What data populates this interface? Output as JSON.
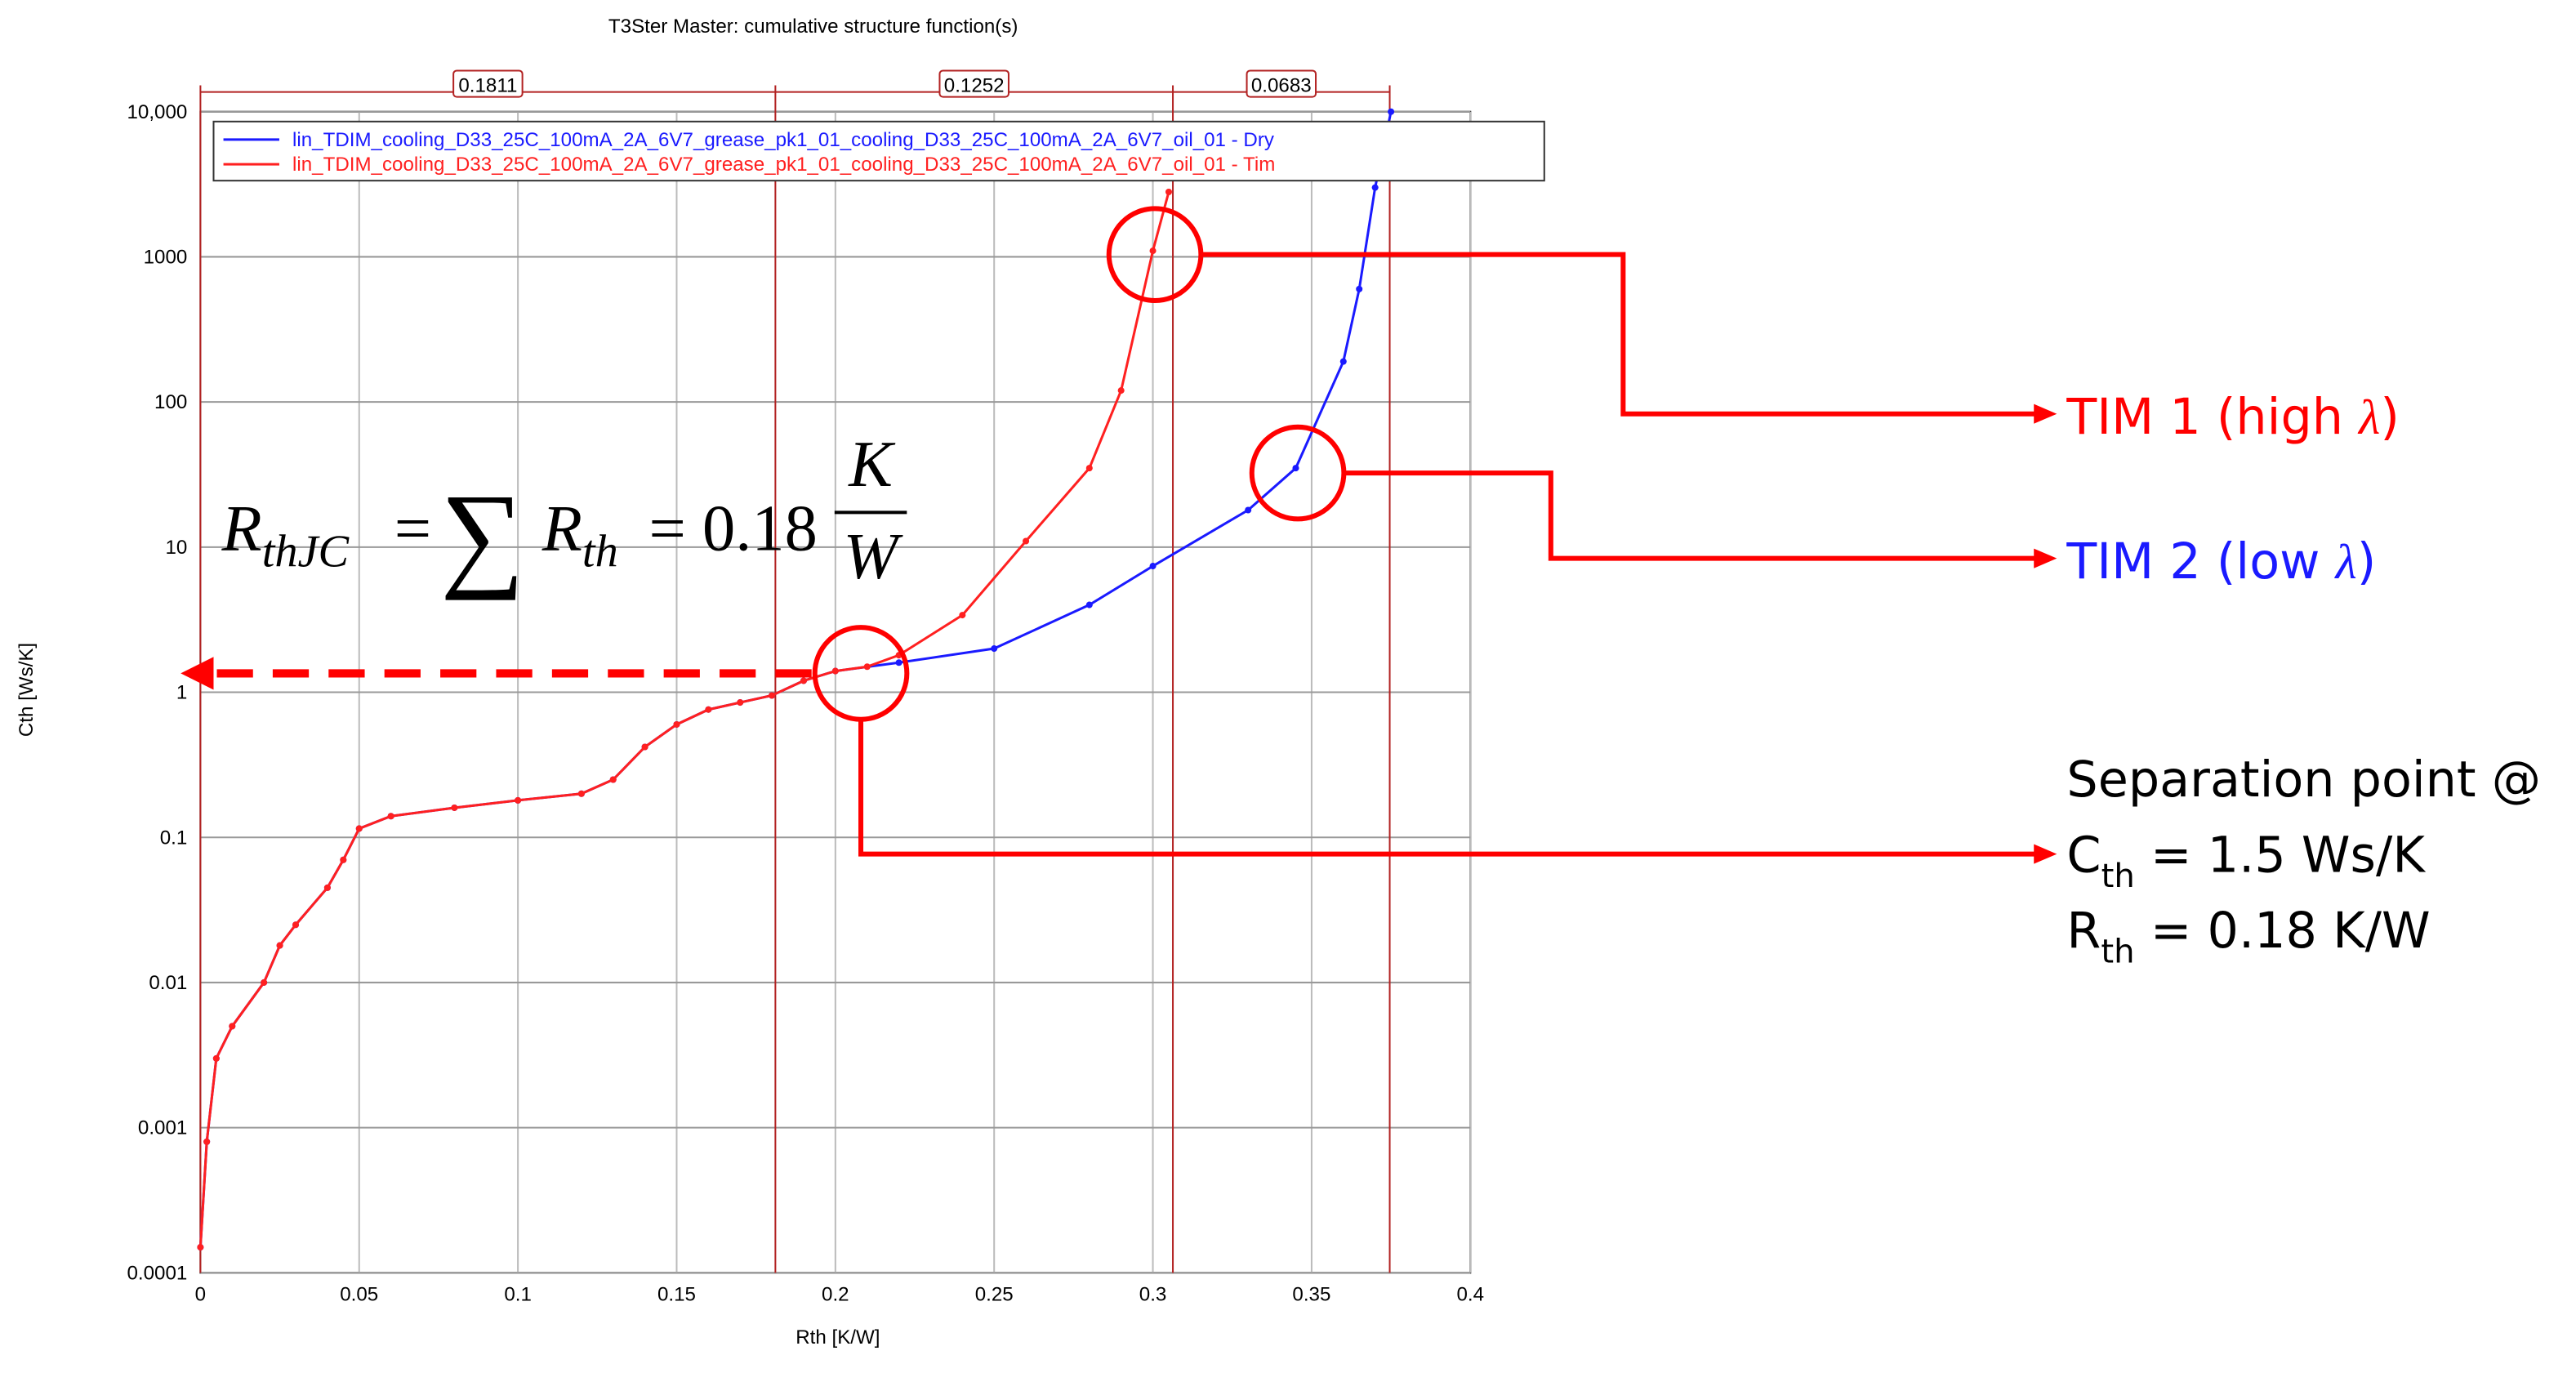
{
  "chart_data": {
    "type": "line",
    "title": "T3Ster Master: cumulative structure function(s)",
    "x_label": "Rth  [K/W]",
    "y_label": "Cth  [Ws/K]",
    "log_y": true,
    "grid": true,
    "legend": "top-left",
    "xlim": [
      0,
      0.4
    ],
    "xticks": [
      0,
      0.05,
      0.1,
      0.15,
      0.2,
      0.25,
      0.3,
      0.35,
      0.4
    ],
    "ylim": [
      0.0001,
      10000
    ],
    "yticks": [
      0.0001,
      0.001,
      0.01,
      0.1,
      1,
      10,
      100,
      1000,
      {
        "value": 10000,
        "label": "10,000"
      }
    ],
    "segments": {
      "color": "#b22222",
      "values": [
        0.1811,
        0.1252,
        0.0683
      ]
    },
    "series": [
      {
        "name": "lin_TDIM_cooling_D33_25C_100mA_2A_6V7_grease_pk1_01_cooling_D33_25C_100mA_2A_6V7_oil_01 - Dry",
        "color": "#1a1aff",
        "x": [
          0,
          0.002,
          0.005,
          0.01,
          0.02,
          0.025,
          0.03,
          0.04,
          0.045,
          0.05,
          0.06,
          0.08,
          0.1,
          0.12,
          0.13,
          0.14,
          0.15,
          0.16,
          0.17,
          0.18,
          0.19,
          0.2,
          0.22,
          0.25,
          0.28,
          0.3,
          0.33,
          0.345,
          0.36,
          0.365,
          0.37,
          0.375
        ],
        "values": [
          0.00015,
          0.0008,
          0.003,
          0.005,
          0.01,
          0.018,
          0.025,
          0.045,
          0.07,
          0.115,
          0.14,
          0.16,
          0.18,
          0.2,
          0.25,
          0.42,
          0.6,
          0.76,
          0.85,
          0.95,
          1.2,
          1.4,
          1.6,
          2,
          4,
          7.4,
          18,
          35,
          190,
          600,
          3000,
          10000
        ]
      },
      {
        "name": "lin_TDIM_cooling_D33_25C_100mA_2A_6V7_grease_pk1_01_cooling_D33_25C_100mA_2A_6V7_oil_01 - Tim",
        "color": "#ff2020",
        "x": [
          0,
          0.002,
          0.005,
          0.01,
          0.02,
          0.025,
          0.03,
          0.04,
          0.045,
          0.05,
          0.06,
          0.08,
          0.1,
          0.12,
          0.13,
          0.14,
          0.15,
          0.16,
          0.17,
          0.18,
          0.19,
          0.2,
          0.21,
          0.22,
          0.24,
          0.26,
          0.28,
          0.29,
          0.3,
          0.305
        ],
        "values": [
          0.00015,
          0.0008,
          0.003,
          0.005,
          0.01,
          0.018,
          0.025,
          0.045,
          0.07,
          0.115,
          0.14,
          0.16,
          0.18,
          0.2,
          0.25,
          0.42,
          0.6,
          0.76,
          0.85,
          0.95,
          1.2,
          1.4,
          1.5,
          1.8,
          3.4,
          11,
          35,
          120,
          1100,
          2800
        ]
      }
    ],
    "formula": {
      "lhs": "R",
      "lhs_sub": "thJC",
      "eq1": "=",
      "sum": "∑",
      "mid": "R",
      "mid_sub": "th",
      "eq2": "= 0.18",
      "num": "K",
      "den": "W"
    },
    "annotations": {
      "tim1": {
        "text": "TIM 1 (high ",
        "symbol": "λ",
        "close": ")"
      },
      "tim2": {
        "text": "TIM 2 (low ",
        "symbol": "λ",
        "close": ")"
      },
      "separation": [
        "Separation point @",
        {
          "main": "C",
          "sub": "th",
          "rest": " = 1.5 Ws/K"
        },
        {
          "main": "R",
          "sub": "th",
          "rest": " = 0.18 K/W"
        }
      ]
    }
  }
}
